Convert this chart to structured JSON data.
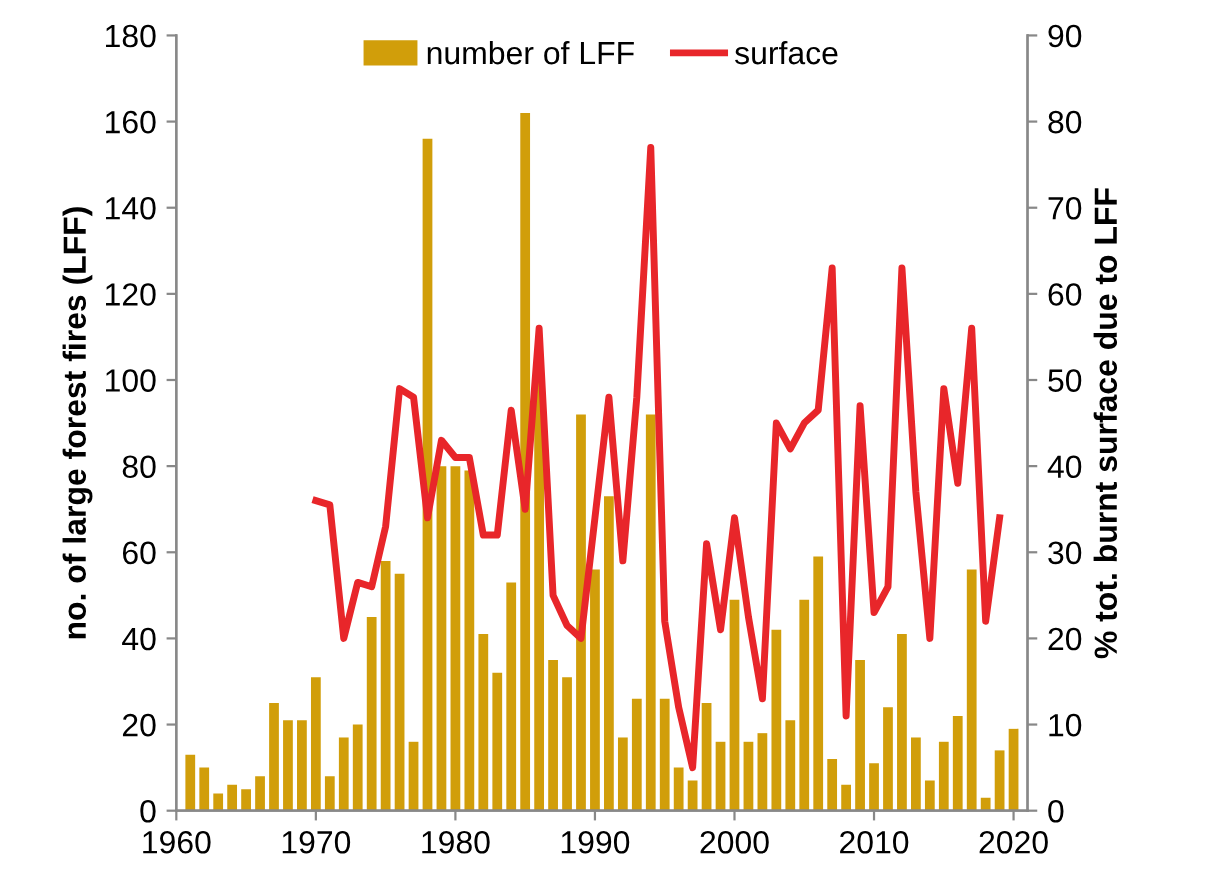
{
  "chart_data": {
    "type": "bar",
    "xlabel": null,
    "ylabel": "no. of large forest fires (LFF)",
    "y2label": "% tot. burnt surface due to LFF",
    "x": [
      1961,
      1962,
      1963,
      1964,
      1965,
      1966,
      1967,
      1968,
      1969,
      1970,
      1971,
      1972,
      1973,
      1974,
      1975,
      1976,
      1977,
      1978,
      1979,
      1980,
      1981,
      1982,
      1983,
      1984,
      1985,
      1986,
      1987,
      1988,
      1989,
      1990,
      1991,
      1992,
      1993,
      1994,
      1995,
      1996,
      1997,
      1998,
      1999,
      2000,
      2001,
      2002,
      2003,
      2004,
      2005,
      2006,
      2007,
      2008,
      2009,
      2010,
      2011,
      2012,
      2013,
      2014,
      2015,
      2016,
      2017,
      2018,
      2019,
      2020
    ],
    "series": [
      {
        "name": "number of LFF",
        "color": "#d19e0a",
        "values": [
          13,
          10,
          4,
          6,
          5,
          8,
          25,
          21,
          21,
          31,
          8,
          17,
          20,
          45,
          58,
          55,
          16,
          156,
          80,
          80,
          79,
          41,
          32,
          53,
          162,
          100,
          35,
          31,
          92,
          56,
          73,
          17,
          26,
          92,
          26,
          10,
          7,
          25,
          16,
          49,
          16,
          18,
          42,
          21,
          49,
          59,
          12,
          6,
          35,
          11,
          24,
          41,
          17,
          7,
          16,
          22,
          56,
          3,
          14,
          19
        ]
      },
      {
        "name": "surface",
        "type": "line",
        "axis": "y2",
        "color": "#e8262a",
        "x": [
          1970,
          1971,
          1972,
          1973,
          1974,
          1975,
          1976,
          1977,
          1978,
          1979,
          1980,
          1981,
          1982,
          1983,
          1984,
          1985,
          1986,
          1987,
          1988,
          1989,
          1990,
          1991,
          1992,
          1993,
          1994,
          1995,
          1996,
          1997,
          1998,
          1999,
          2000,
          2001,
          2002,
          2003,
          2004,
          2005,
          2006,
          2007,
          2008,
          2009,
          2010,
          2011,
          2012,
          2013,
          2014,
          2015,
          2016,
          2017,
          2018,
          2019
        ],
        "values": [
          36,
          35.5,
          20,
          26.5,
          26,
          33,
          49,
          48,
          34,
          43,
          41,
          41,
          32,
          32,
          46.5,
          35,
          56,
          25,
          21.5,
          20,
          34,
          48,
          29,
          48,
          77,
          22,
          12,
          5,
          31,
          21,
          34,
          22.5,
          13,
          45,
          42,
          45,
          46.5,
          63,
          11,
          47,
          23,
          26,
          63,
          37,
          20,
          49,
          38,
          56,
          22,
          34
        ]
      }
    ],
    "xlim": [
      1960,
      2021
    ],
    "xticks": [
      1960,
      1970,
      1980,
      1990,
      2000,
      2010,
      2020
    ],
    "ylim": [
      0,
      180
    ],
    "yticks": [
      0,
      20,
      40,
      60,
      80,
      100,
      120,
      140,
      160,
      180
    ],
    "y2lim": [
      0,
      90
    ],
    "y2ticks": [
      0,
      10,
      20,
      30,
      40,
      50,
      60,
      70,
      80,
      90
    ],
    "legend": "top",
    "grid": false,
    "marker": "none",
    "line_style": "solid"
  }
}
